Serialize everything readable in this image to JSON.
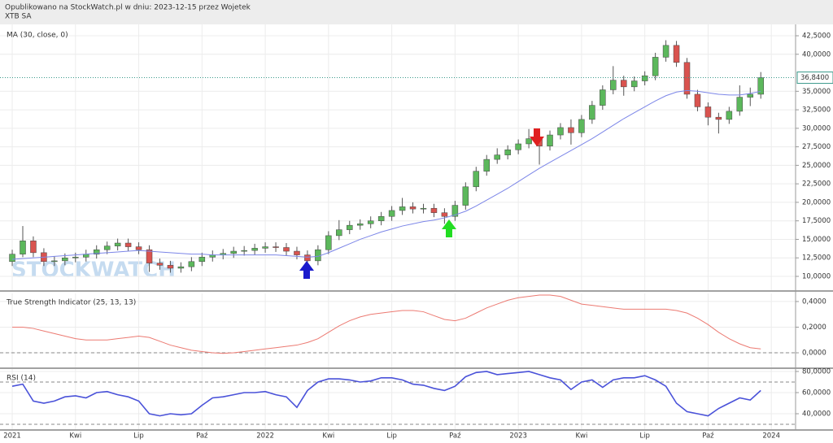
{
  "header": {
    "published": "Opublikowano na StockWatch.pl w dniu: 2023-12-15 przez Wojetek",
    "symbol": "XTB SA",
    "watermark": "STOCKWATCH"
  },
  "chart_data": [
    {
      "type": "candlestick",
      "grid": true,
      "up_color": "#5cb85c",
      "down_color": "#d9534f",
      "xlim": [
        -1.16,
        74.3
      ],
      "xticks": [
        {
          "value": 0,
          "label": "2021"
        },
        {
          "value": 6,
          "label": "Kwi"
        },
        {
          "value": 12,
          "label": "Lip"
        },
        {
          "value": 18,
          "label": "Paź"
        },
        {
          "value": 24,
          "label": "2022"
        },
        {
          "value": 30,
          "label": "Kwi"
        },
        {
          "value": 36,
          "label": "Lip"
        },
        {
          "value": 42,
          "label": "Paź"
        },
        {
          "value": 48,
          "label": "2023"
        },
        {
          "value": 54,
          "label": "Kwi"
        },
        {
          "value": 60,
          "label": "Lip"
        },
        {
          "value": 66,
          "label": "Paź"
        },
        {
          "value": 72,
          "label": "2024"
        }
      ],
      "ylim": [
        8134,
        44037
      ],
      "yticks": [
        {
          "value": 10000,
          "label": "10,0000"
        },
        {
          "value": 12500,
          "label": "12,5000"
        },
        {
          "value": 15000,
          "label": "15,0000"
        },
        {
          "value": 17500,
          "label": "17,5000"
        },
        {
          "value": 20000,
          "label": "20,0000"
        },
        {
          "value": 22500,
          "label": "22,5000"
        },
        {
          "value": 25000,
          "label": "25,0000"
        },
        {
          "value": 27500,
          "label": "27,5000"
        },
        {
          "value": 30000,
          "label": "30,0000"
        },
        {
          "value": 32500,
          "label": "32,5000"
        },
        {
          "value": 35000,
          "label": "35,0000"
        },
        {
          "value": 40000,
          "label": "40,0000"
        },
        {
          "value": 42500,
          "label": "42,5000"
        }
      ],
      "last_price": {
        "value": 36840,
        "label": "36,8400",
        "color": "#3a9a8a"
      },
      "open": [
        12000,
        13000,
        14800,
        13200,
        12000,
        12100,
        12500,
        12600,
        13000,
        13600,
        14100,
        14500,
        14000,
        13600,
        11800,
        11500,
        11100,
        11300,
        12000,
        12600,
        12900,
        13100,
        13400,
        13500,
        13800,
        14000,
        13900,
        13400,
        12900,
        12100,
        13600,
        15500,
        16300,
        16900,
        17100,
        17500,
        18100,
        18900,
        19400,
        19100,
        19200,
        18600,
        18100,
        19600,
        22100,
        24200,
        25800,
        26400,
        27100,
        27900,
        28600,
        27600,
        29100,
        30100,
        29400,
        31200,
        33100,
        35200,
        36500,
        35600,
        36400,
        37100,
        39600,
        41200,
        38900,
        34600,
        32900,
        31500,
        31200,
        32300,
        34200,
        34600
      ],
      "high": [
        13600,
        16800,
        15400,
        13800,
        12700,
        13100,
        13200,
        13600,
        14200,
        14700,
        15100,
        15100,
        14600,
        14200,
        12400,
        12100,
        11900,
        12600,
        13200,
        13500,
        13700,
        14000,
        14100,
        14400,
        14600,
        14600,
        14500,
        14000,
        13500,
        14200,
        16100,
        17600,
        17500,
        17700,
        18100,
        18700,
        19500,
        20600,
        20000,
        19800,
        19800,
        19200,
        20200,
        22700,
        24800,
        26400,
        27300,
        27700,
        28500,
        29900,
        29200,
        29700,
        30700,
        31200,
        31800,
        33700,
        35800,
        38400,
        37100,
        37000,
        37700,
        40200,
        41900,
        41800,
        39500,
        35200,
        33500,
        32100,
        32900,
        35800,
        35500,
        37600
      ],
      "low": [
        11400,
        12600,
        12600,
        11400,
        11400,
        11500,
        11900,
        12000,
        12400,
        13000,
        13500,
        13400,
        13000,
        10600,
        10900,
        10500,
        10500,
        10700,
        11400,
        12000,
        12300,
        12500,
        12800,
        12900,
        13200,
        13300,
        12800,
        12300,
        11000,
        11500,
        13000,
        14900,
        15700,
        16300,
        16500,
        16900,
        17500,
        18300,
        18500,
        18500,
        18000,
        17100,
        17500,
        19000,
        21500,
        23600,
        25200,
        25800,
        26500,
        27300,
        25100,
        27000,
        28500,
        27800,
        28800,
        30600,
        32500,
        34600,
        34400,
        35000,
        35800,
        36500,
        39000,
        38300,
        34000,
        32300,
        30400,
        29300,
        30600,
        31700,
        33000,
        34000
      ],
      "close": [
        13000,
        14800,
        13200,
        12000,
        12100,
        12500,
        12600,
        13000,
        13600,
        14100,
        14500,
        14000,
        13600,
        11800,
        11500,
        11100,
        11300,
        12000,
        12600,
        12900,
        13100,
        13400,
        13500,
        13800,
        14000,
        13900,
        13400,
        12900,
        12100,
        13600,
        15500,
        16300,
        16900,
        17100,
        17500,
        18100,
        18900,
        19400,
        19100,
        19200,
        18600,
        18100,
        19600,
        22100,
        24200,
        25800,
        26400,
        27100,
        27900,
        28600,
        27600,
        29100,
        30100,
        29400,
        31200,
        33100,
        35200,
        36500,
        35600,
        36400,
        37100,
        39600,
        41200,
        38900,
        34600,
        32900,
        31500,
        31200,
        32300,
        34200,
        34600,
        36840
      ],
      "series": [
        {
          "name": "MA (30, close, 0)",
          "color": "#7c86e8",
          "values": [
            12300,
            12400,
            12500,
            12600,
            12700,
            12800,
            12900,
            13000,
            13100,
            13200,
            13300,
            13400,
            13500,
            13400,
            13300,
            13200,
            13100,
            13000,
            13000,
            12900,
            12900,
            12900,
            12900,
            12900,
            12900,
            12900,
            12800,
            12700,
            12600,
            12700,
            13200,
            13800,
            14400,
            15000,
            15500,
            16000,
            16400,
            16800,
            17100,
            17400,
            17600,
            17900,
            18300,
            18800,
            19500,
            20300,
            21100,
            21900,
            22800,
            23700,
            24600,
            25400,
            26200,
            27000,
            27800,
            28600,
            29500,
            30400,
            31300,
            32100,
            32900,
            33700,
            34400,
            34900,
            35100,
            35000,
            34800,
            34600,
            34500,
            34500,
            34700,
            35000
          ]
        }
      ]
    },
    {
      "type": "line",
      "grid": true,
      "ylim": [
        -0.114,
        0.463
      ],
      "yticks": [
        {
          "value": 0,
          "label": "0,0000"
        },
        {
          "value": 0.2,
          "label": "0,2000"
        },
        {
          "value": 0.4,
          "label": "0,4000"
        }
      ],
      "levels": [
        0
      ],
      "series": [
        {
          "name": "True Strength Indicator (25, 13, 13)",
          "color": "#ec7a72",
          "values": [
            0.2,
            0.2,
            0.19,
            0.17,
            0.15,
            0.13,
            0.11,
            0.1,
            0.1,
            0.1,
            0.11,
            0.12,
            0.13,
            0.12,
            0.09,
            0.06,
            0.04,
            0.02,
            0.01,
            0,
            -0.005,
            0,
            0.01,
            0.02,
            0.03,
            0.04,
            0.05,
            0.06,
            0.08,
            0.11,
            0.16,
            0.21,
            0.25,
            0.28,
            0.3,
            0.31,
            0.32,
            0.33,
            0.33,
            0.32,
            0.29,
            0.26,
            0.25,
            0.27,
            0.31,
            0.35,
            0.38,
            0.41,
            0.43,
            0.44,
            0.45,
            0.45,
            0.44,
            0.41,
            0.38,
            0.37,
            0.36,
            0.35,
            0.34,
            0.34,
            0.34,
            0.34,
            0.34,
            0.33,
            0.31,
            0.27,
            0.22,
            0.16,
            0.11,
            0.07,
            0.04,
            0.03
          ]
        }
      ]
    },
    {
      "type": "line",
      "grid": true,
      "ylim": [
        25.4,
        82.3
      ],
      "yticks": [
        {
          "value": 40,
          "label": "40,0000"
        },
        {
          "value": 60,
          "label": "60,0000"
        },
        {
          "value": 80,
          "label": "80,0000"
        }
      ],
      "levels": [
        70,
        30
      ],
      "series": [
        {
          "name": "RSI (14)",
          "color": "#4a52d9",
          "values": [
            66,
            68,
            52,
            50,
            52,
            56,
            57,
            55,
            60,
            61,
            58,
            56,
            52,
            40,
            38,
            40,
            39,
            40,
            48,
            55,
            56,
            58,
            60,
            60,
            61,
            58,
            56,
            46,
            62,
            70,
            73,
            73,
            72,
            70,
            71,
            74,
            74,
            72,
            68,
            67,
            64,
            62,
            66,
            75,
            79,
            80,
            77,
            78,
            79,
            80,
            77,
            74,
            72,
            63,
            70,
            72,
            65,
            72,
            74,
            74,
            76,
            72,
            66,
            50,
            42,
            40,
            38,
            45,
            50,
            55,
            53,
            62
          ]
        }
      ]
    }
  ]
}
